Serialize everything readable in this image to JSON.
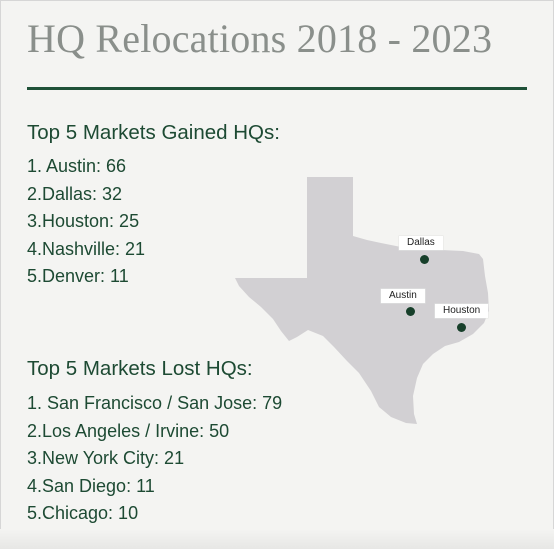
{
  "title": "HQ Relocations 2018 - 2023",
  "gained": {
    "heading": "Top 5 Markets Gained HQs:",
    "items": [
      "1. Austin: 66",
      "2.Dallas: 32",
      "3.Houston: 25",
      "4.Nashville: 21",
      "5.Denver: 11"
    ]
  },
  "lost": {
    "heading": "Top 5 Markets Lost HQs:",
    "items": [
      "1. San Francisco / San Jose: 79",
      "2.Los Angeles / Irvine: 50",
      "3.New York City: 21",
      "4.San Diego: 11",
      "5.Chicago: 10"
    ]
  },
  "map": {
    "labels": {
      "dallas": "Dallas",
      "austin": "Austin",
      "houston": "Houston"
    }
  },
  "colors": {
    "accent": "#1f5138",
    "text": "#1d4a33",
    "title": "#8a8f8b",
    "map_fill": "#d2d0d3",
    "dot": "#173f2a"
  }
}
